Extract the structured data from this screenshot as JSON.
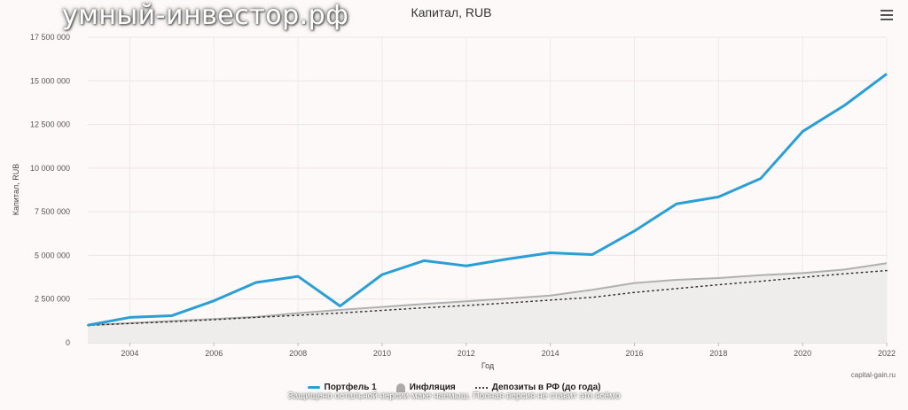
{
  "watermark": "умный-инвестор.рф",
  "credit": "capital-gain.ru",
  "bottom_note": "Защищено остальной версии маке наемыш. Полная версия не ставит это ясёмо",
  "menu_icon": "hamburger-menu-icon",
  "colors": {
    "portfolio": "#2a9fd6",
    "inflation_fill": "#efedec",
    "inflation_line": "#b0b0b0",
    "deposits": "#333333"
  },
  "chart_data": {
    "type": "line",
    "title": "Капитал, RUB",
    "xlabel": "Год",
    "ylabel": "Капитал, RUB",
    "ylim": [
      0,
      17500000
    ],
    "xlim": [
      2003,
      2022
    ],
    "y_ticks": [
      0,
      2500000,
      5000000,
      7500000,
      10000000,
      12500000,
      15000000,
      17500000
    ],
    "y_tick_labels": [
      "0",
      "2 500 000",
      "5 000 000",
      "7 500 000",
      "10 000 000",
      "12 500 000",
      "15 000 000",
      "17 500 000"
    ],
    "x_ticks": [
      2004,
      2006,
      2008,
      2010,
      2012,
      2014,
      2016,
      2018,
      2020,
      2022
    ],
    "x_tick_labels": [
      "2004",
      "2006",
      "2008",
      "2010",
      "2012",
      "2014",
      "2016",
      "2018",
      "2020",
      "2022"
    ],
    "grid": true,
    "legend_position": "bottom",
    "x": [
      2003,
      2004,
      2005,
      2006,
      2007,
      2008,
      2009,
      2010,
      2011,
      2012,
      2013,
      2014,
      2015,
      2016,
      2017,
      2018,
      2019,
      2020,
      2021,
      2022
    ],
    "series": [
      {
        "name": "Портфель 1",
        "kind": "line",
        "values": [
          1000000,
          1450000,
          1550000,
          2400000,
          3450000,
          3800000,
          2100000,
          3900000,
          4700000,
          4400000,
          4800000,
          5150000,
          5050000,
          6400000,
          7950000,
          8350000,
          9400000,
          12100000,
          13600000,
          15400000
        ]
      },
      {
        "name": "Инфляция",
        "kind": "area",
        "values": [
          1000000,
          1120000,
          1240000,
          1360000,
          1480000,
          1690000,
          1880000,
          2050000,
          2220000,
          2370000,
          2530000,
          2700000,
          3030000,
          3420000,
          3600000,
          3700000,
          3870000,
          3990000,
          4190000,
          4550000
        ]
      },
      {
        "name": "Депозиты в РФ (до года)",
        "kind": "dotted",
        "values": [
          1000000,
          1100000,
          1200000,
          1320000,
          1450000,
          1570000,
          1700000,
          1850000,
          2000000,
          2130000,
          2280000,
          2440000,
          2600000,
          2880000,
          3100000,
          3320000,
          3520000,
          3740000,
          3950000,
          4130000
        ]
      }
    ]
  }
}
